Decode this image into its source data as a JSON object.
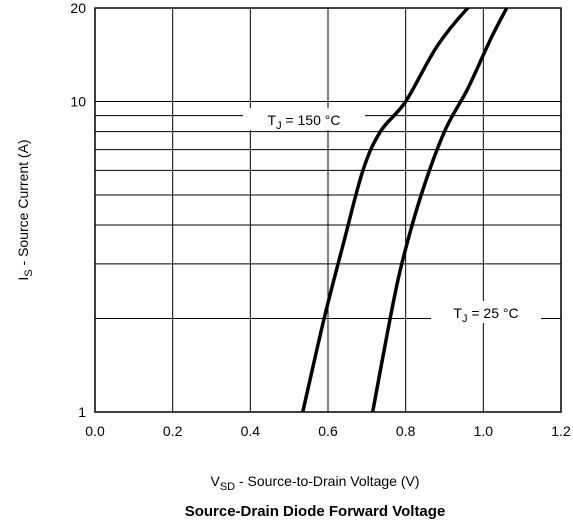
{
  "chart_data": {
    "type": "line",
    "title": "Source-Drain Diode Forward Voltage",
    "xlabel": {
      "main": "V",
      "sub": "SD",
      "rest": " - Source-to-Drain Voltage (V)"
    },
    "ylabel": {
      "main": "I",
      "sub": "S",
      "rest": " - Source Current (A)"
    },
    "xlim": [
      0,
      1.2
    ],
    "ylim": [
      1,
      20
    ],
    "yscale": "log",
    "grid": true,
    "x_ticks": [
      "0.0",
      "0.2",
      "0.4",
      "0.6",
      "0.8",
      "1.0",
      "1.2"
    ],
    "y_ticks": [
      "1",
      "10",
      "20"
    ],
    "series": [
      {
        "name": {
          "main": "T",
          "sub": "J",
          "rest": " = 150 °C"
        },
        "x": [
          0.535,
          0.59,
          0.64,
          0.69,
          0.735,
          0.8,
          0.88,
          0.96,
          0.98
        ],
        "y": [
          1,
          2,
          3.5,
          6,
          8,
          10,
          15,
          20,
          20.5
        ]
      },
      {
        "name": {
          "main": "T",
          "sub": "J",
          "rest": " = 25 °C"
        },
        "x": [
          0.715,
          0.76,
          0.79,
          0.84,
          0.9,
          0.96,
          1.02,
          1.065
        ],
        "y": [
          1,
          2,
          3,
          5,
          8,
          11,
          16,
          20.5
        ]
      }
    ]
  }
}
